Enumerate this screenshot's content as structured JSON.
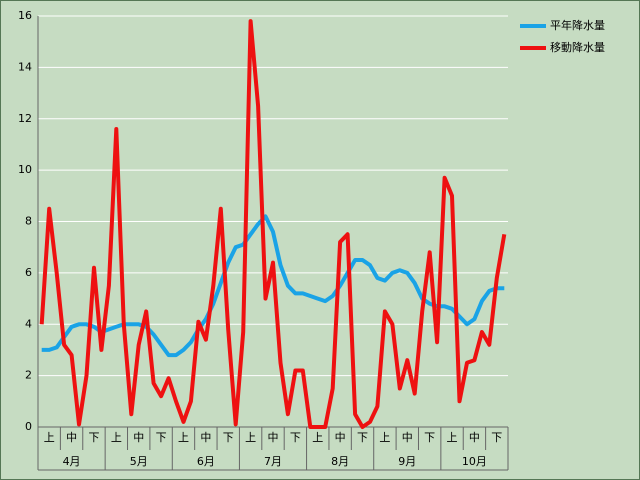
{
  "chart_data": {
    "type": "line",
    "categories": [
      null,
      "上",
      null,
      null,
      "中",
      null,
      null,
      "下",
      null,
      null,
      "上",
      null,
      null,
      "中",
      null,
      null,
      "下",
      null,
      null,
      "上",
      null,
      null,
      "中",
      null,
      null,
      "下",
      null,
      null,
      "上",
      null,
      null,
      "中",
      null,
      null,
      "下",
      null,
      null,
      "上",
      null,
      null,
      "中",
      null,
      null,
      "下",
      null,
      null,
      "上",
      null,
      null,
      "中",
      null,
      null,
      "下",
      null,
      null,
      "上",
      null,
      null,
      "中",
      null,
      null,
      "下",
      null
    ],
    "groups": [
      "4月",
      "5月",
      "6月",
      "7月",
      "8月",
      "9月",
      "10月"
    ],
    "series": [
      {
        "name": "平年降水量",
        "color": "#1aa3e6",
        "values": [
          3.0,
          3.0,
          3.1,
          3.5,
          3.9,
          4.0,
          4.0,
          3.9,
          3.7,
          3.8,
          3.9,
          4.0,
          4.0,
          4.0,
          3.9,
          3.6,
          3.2,
          2.8,
          2.8,
          3.0,
          3.3,
          3.8,
          4.2,
          4.8,
          5.6,
          6.4,
          7.0,
          7.1,
          7.5,
          7.9,
          8.2,
          7.6,
          6.3,
          5.5,
          5.2,
          5.2,
          5.1,
          5.0,
          4.9,
          5.1,
          5.5,
          6.0,
          6.5,
          6.5,
          6.3,
          5.8,
          5.7,
          6.0,
          6.1,
          6.0,
          5.6,
          5.0,
          4.8,
          4.7,
          4.7,
          4.6,
          4.3,
          4.0,
          4.2,
          4.9,
          5.3,
          5.4,
          5.4
        ]
      },
      {
        "name": "移動降水量",
        "color": "#ee1111",
        "values": [
          4.0,
          8.5,
          6.0,
          3.2,
          2.8,
          0.1,
          2.0,
          6.2,
          3.0,
          5.5,
          11.6,
          4.0,
          0.5,
          3.2,
          4.5,
          1.7,
          1.2,
          1.9,
          1.0,
          0.2,
          1.0,
          4.1,
          3.4,
          5.5,
          8.5,
          3.8,
          0.1,
          3.7,
          15.8,
          12.5,
          5.0,
          6.4,
          2.5,
          0.5,
          2.2,
          2.2,
          0,
          0,
          0,
          1.5,
          7.2,
          7.5,
          0.5,
          0,
          0.2,
          0.8,
          4.5,
          4.0,
          1.5,
          2.6,
          1.3,
          4.5,
          6.8,
          3.3,
          9.7,
          9.0,
          1.0,
          2.5,
          2.6,
          3.7,
          3.2,
          5.8,
          7.5
        ]
      }
    ],
    "ylim": [
      0,
      16
    ],
    "yticks": [
      0,
      2,
      4,
      6,
      8,
      10,
      12,
      14,
      16
    ],
    "grid": true,
    "legend": "top-right"
  }
}
